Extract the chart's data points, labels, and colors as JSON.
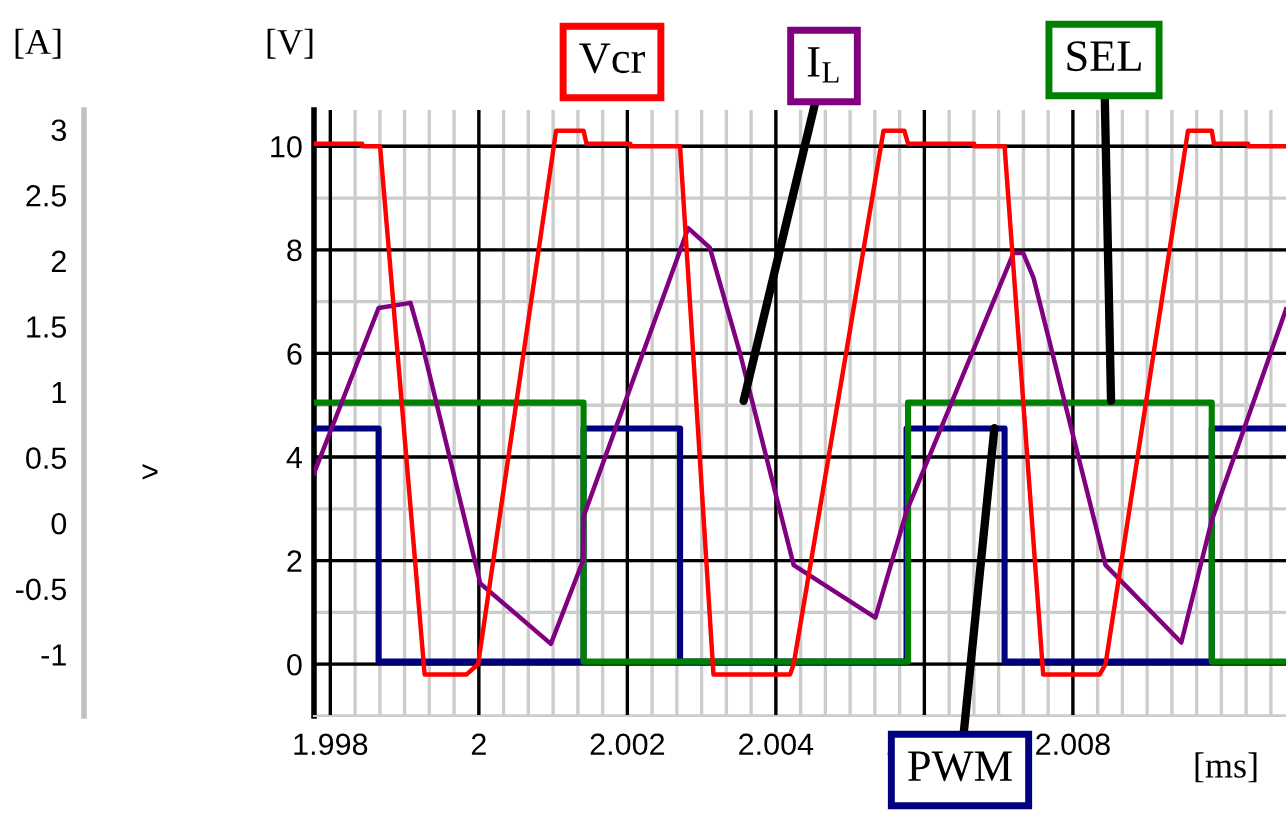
{
  "chart_data": {
    "type": "line",
    "xlabel": "[ms]",
    "ylabel": "[V]",
    "y2label": "[A]",
    "annotations": [
      ">"
    ],
    "xlim": [
      1.99778,
      2.01087
    ],
    "xticks": [
      1.998,
      {
        "value": 2,
        "label": "2"
      },
      2.002,
      2.004,
      2.006,
      2.008
    ],
    "ylim": [
      -1,
      10.7
    ],
    "yticks": [
      0,
      2,
      4,
      6,
      8,
      10
    ],
    "y2lim": [
      -1.47,
      3.15
    ],
    "y2ticks": [
      -1,
      -0.5,
      0,
      0.5,
      1,
      1.5,
      2,
      2.5,
      3
    ],
    "grid": true,
    "line_style": "solid",
    "marker": "none",
    "series": [
      {
        "name": "Vcr",
        "color": "#ff0000",
        "x": [
          1.99778,
          1.99843,
          1.99843,
          1.99867,
          1.99927,
          1.99983,
          1.99999,
          2.00104,
          2.00141,
          2.00145,
          2.00204,
          2.00204,
          2.00271,
          2.00316,
          2.00419,
          2.00424,
          2.00545,
          2.00573,
          2.00578,
          2.00667,
          2.00667,
          2.00708,
          2.0076,
          2.00836,
          2.00844,
          2.00955,
          2.00987,
          2.0099,
          2.01036,
          2.01036,
          2.01087
        ],
        "values": [
          10.05,
          10.05,
          10.0,
          10.0,
          -0.2,
          -0.2,
          0.0,
          10.3,
          10.3,
          10.05,
          10.05,
          10.0,
          10.0,
          -0.2,
          -0.2,
          0.0,
          10.3,
          10.3,
          10.05,
          10.05,
          10.0,
          10.0,
          -0.2,
          -0.2,
          0.0,
          10.3,
          10.3,
          10.05,
          10.05,
          10.0,
          10.0
        ]
      },
      {
        "name": "I$_{L}$",
        "color": "#800080",
        "axis": "y2",
        "x": [
          1.99778,
          1.99865,
          1.99908,
          1.99923,
          2.00002,
          2.00097,
          2.0014,
          2.00141,
          2.00282,
          2.00311,
          2.00352,
          2.00424,
          2.00534,
          2.00576,
          2.0072,
          2.00733,
          2.00747,
          2.00844,
          2.00946,
          2.00987,
          2.01087
        ],
        "values": [
          0.38,
          1.64,
          1.68,
          1.38,
          -0.46,
          -0.92,
          -0.29,
          0.05,
          2.25,
          2.1,
          1.29,
          -0.32,
          -0.72,
          0.09,
          2.06,
          2.06,
          1.87,
          -0.32,
          -0.91,
          0.02,
          1.63
        ]
      },
      {
        "name": "SEL",
        "color": "#008000",
        "x": [
          1.99778,
          2.00141,
          2.00141,
          2.00578,
          2.00578,
          2.00987,
          2.00987,
          2.01087
        ],
        "values": [
          5.05,
          5.05,
          0.05,
          0.05,
          5.05,
          5.05,
          0.05,
          0.05
        ]
      },
      {
        "name": "PWM",
        "color": "#000080",
        "x": [
          1.99778,
          1.99865,
          1.99865,
          2.00141,
          2.00141,
          2.00271,
          2.00271,
          2.00576,
          2.00576,
          2.00708,
          2.00708,
          2.00987,
          2.00987,
          2.01087
        ],
        "values": [
          4.55,
          4.55,
          0.05,
          0.05,
          4.55,
          4.55,
          0.05,
          0.05,
          4.55,
          4.55,
          0.05,
          0.05,
          4.55,
          4.55
        ]
      }
    ]
  }
}
